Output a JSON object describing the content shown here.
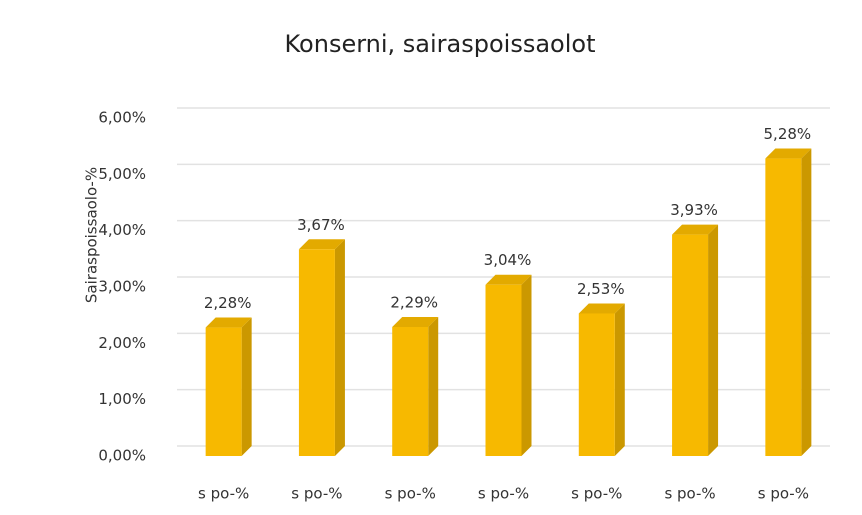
{
  "chart_data": {
    "type": "bar3d",
    "title": "Konserni, sairaspoissaolot",
    "y_label": "Sairaspoissaolo-%",
    "categories": [
      "s po-%",
      "s po-%",
      "s po-%",
      "s po-%",
      "s po-%",
      "s po-%",
      "s po-%"
    ],
    "values": [
      2.28,
      3.67,
      2.29,
      3.04,
      2.53,
      3.93,
      5.28
    ],
    "value_labels": [
      "2,28%",
      "3,67%",
      "2,29%",
      "3,04%",
      "2,53%",
      "3,93%",
      "5,28%"
    ],
    "color": "#f7b900",
    "ylim": [
      0,
      6
    ],
    "yticks": [
      {
        "value": 0,
        "label": "0,00%"
      },
      {
        "value": 1,
        "label": "1,00%"
      },
      {
        "value": 2,
        "label": "2,00%"
      },
      {
        "value": 3,
        "label": "3,00%"
      },
      {
        "value": 4,
        "label": "4,00%"
      },
      {
        "value": 5,
        "label": "5,00%"
      },
      {
        "value": 6,
        "label": "6,00%"
      }
    ],
    "grid": true
  }
}
